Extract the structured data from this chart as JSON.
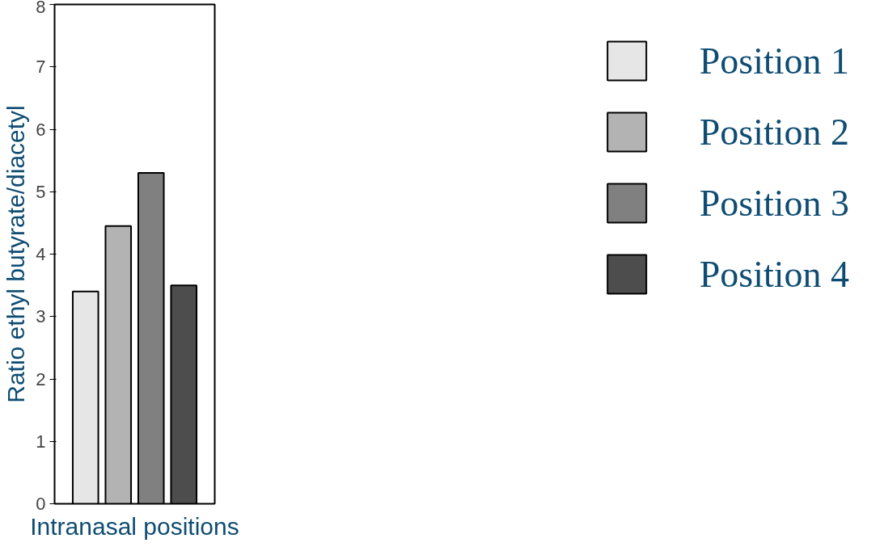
{
  "chart_data": {
    "type": "bar",
    "xlabel": "Intranasal positions",
    "ylabel": "Ratio ethyl butyrate/diacetyl",
    "categories": [
      null
    ],
    "series": [
      {
        "name": "Position 1",
        "color": "#e6e6e6",
        "values": [
          3.4
        ]
      },
      {
        "name": "Position 2",
        "color": "#b3b3b3",
        "values": [
          4.45
        ]
      },
      {
        "name": "Position 3",
        "color": "#808080",
        "values": [
          5.3
        ]
      },
      {
        "name": "Position 4",
        "color": "#4d4d4d",
        "values": [
          3.5
        ]
      }
    ],
    "ylim": [
      0,
      8
    ],
    "yticks": [
      0,
      1,
      2,
      3,
      4,
      5,
      6,
      7,
      8
    ],
    "grid": false,
    "legend": "right"
  }
}
